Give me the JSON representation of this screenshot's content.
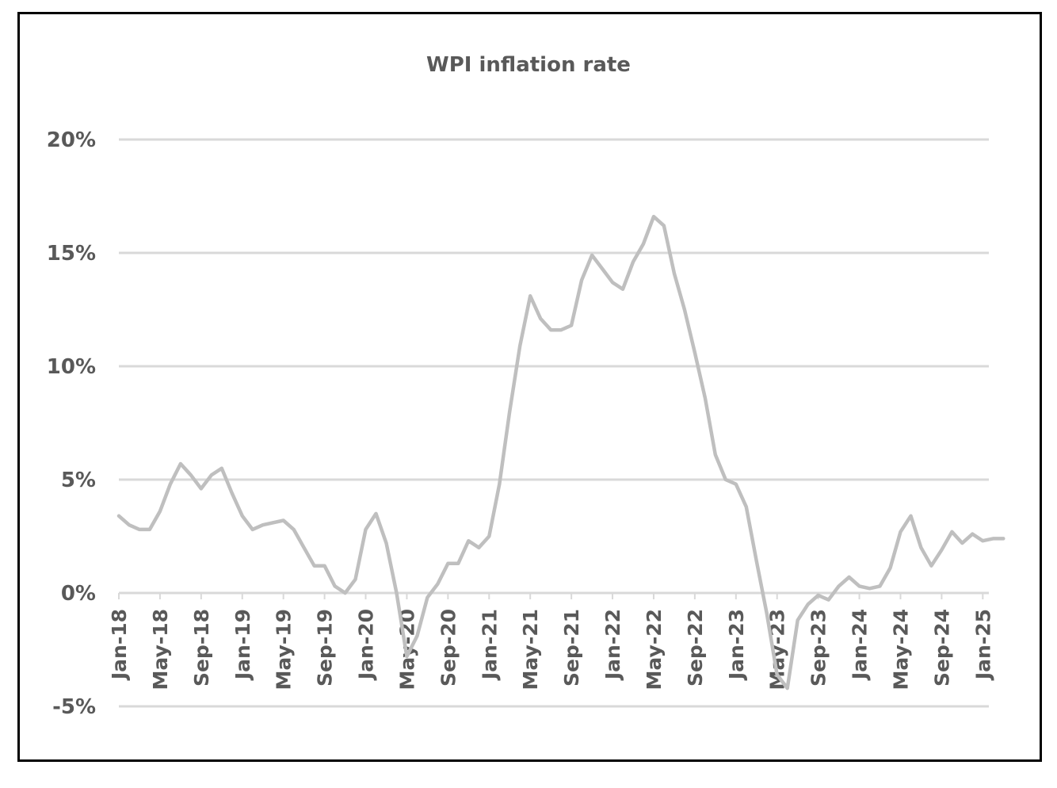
{
  "chart_data": {
    "type": "line",
    "title": "WPI inflation rate",
    "xlabel": "",
    "ylabel": "",
    "y_tick_labels": [
      "20%",
      "15%",
      "10%",
      "5%",
      "0%",
      "-5%"
    ],
    "y_ticks": [
      20,
      15,
      10,
      5,
      0,
      -5
    ],
    "ylim": [
      -5,
      20
    ],
    "x_tick_labels": [
      "Jan-18",
      "May-18",
      "Sep-18",
      "Jan-19",
      "May-19",
      "Sep-19",
      "Jan-20",
      "May-20",
      "Sep-20",
      "Jan-21",
      "May-21",
      "Sep-21",
      "Jan-22",
      "May-22",
      "Sep-22",
      "Jan-23",
      "May-23",
      "Sep-23",
      "Jan-24",
      "May-24",
      "Sep-24",
      "Jan-25"
    ],
    "grid": true,
    "legend": "none",
    "colors": {
      "line": "#bfbfbf",
      "grid": "#d9d9d9",
      "text": "#595959"
    },
    "series": [
      {
        "x": [
          "Jan-18",
          "Feb-18",
          "Mar-18",
          "Apr-18",
          "May-18",
          "Jun-18",
          "Jul-18",
          "Aug-18",
          "Sep-18",
          "Oct-18",
          "Nov-18",
          "Dec-18",
          "Jan-19",
          "Feb-19",
          "Mar-19",
          "Apr-19",
          "May-19",
          "Jun-19",
          "Jul-19",
          "Aug-19",
          "Sep-19",
          "Oct-19",
          "Nov-19",
          "Dec-19",
          "Jan-20",
          "Feb-20",
          "Mar-20",
          "Apr-20",
          "May-20",
          "Jun-20",
          "Jul-20",
          "Aug-20",
          "Sep-20",
          "Oct-20",
          "Nov-20",
          "Dec-20",
          "Jan-21",
          "Feb-21",
          "Mar-21",
          "Apr-21",
          "May-21",
          "Jun-21",
          "Jul-21",
          "Aug-21",
          "Sep-21",
          "Oct-21",
          "Nov-21",
          "Dec-21",
          "Jan-22",
          "Feb-22",
          "Mar-22",
          "Apr-22",
          "May-22",
          "Jun-22",
          "Jul-22",
          "Aug-22",
          "Sep-22",
          "Oct-22",
          "Nov-22",
          "Dec-22",
          "Jan-23",
          "Feb-23",
          "Mar-23",
          "Apr-23",
          "May-23",
          "Jun-23",
          "Jul-23",
          "Aug-23",
          "Sep-23",
          "Oct-23",
          "Nov-23",
          "Dec-23",
          "Jan-24",
          "Feb-24",
          "Mar-24",
          "Apr-24",
          "May-24",
          "Jun-24",
          "Jul-24",
          "Aug-24",
          "Sep-24",
          "Oct-24",
          "Nov-24",
          "Dec-24",
          "Jan-25",
          "Feb-25",
          "Mar-25"
        ],
        "values": [
          3.4,
          3.0,
          2.8,
          2.8,
          3.6,
          4.8,
          5.7,
          5.2,
          4.6,
          5.2,
          5.5,
          4.4,
          3.4,
          2.8,
          3.0,
          3.1,
          3.2,
          2.8,
          2.0,
          1.2,
          1.2,
          0.3,
          0.0,
          0.6,
          2.8,
          3.5,
          2.2,
          0.0,
          -2.8,
          -1.9,
          -0.2,
          0.4,
          1.3,
          1.3,
          2.3,
          2.0,
          2.5,
          4.8,
          8.0,
          10.9,
          13.1,
          12.1,
          11.6,
          11.6,
          11.8,
          13.8,
          14.9,
          14.3,
          13.7,
          13.4,
          14.6,
          15.4,
          16.6,
          16.2,
          14.1,
          12.5,
          10.6,
          8.6,
          6.1,
          5.0,
          4.8,
          3.8,
          1.4,
          -0.9,
          -3.6,
          -4.2,
          -1.2,
          -0.5,
          -0.1,
          -0.3,
          0.3,
          0.7,
          0.3,
          0.2,
          0.3,
          1.1,
          2.7,
          3.4,
          2.0,
          1.2,
          1.9,
          2.7,
          2.2,
          2.6,
          2.3,
          2.4,
          2.4
        ]
      }
    ]
  }
}
